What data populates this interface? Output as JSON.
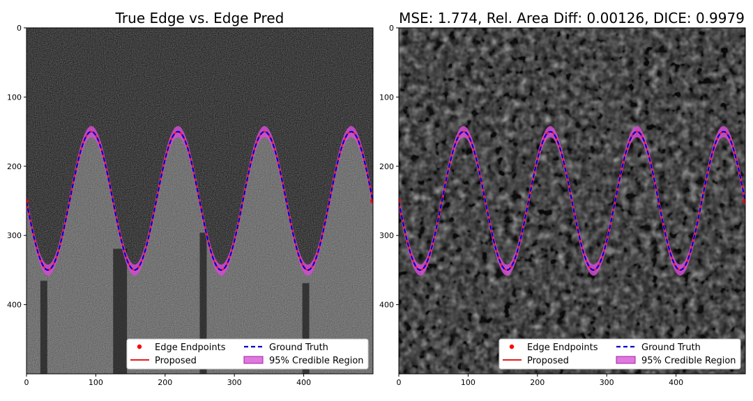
{
  "chart_data": [
    {
      "type": "line",
      "title": "True Edge vs. Edge Pred",
      "background": "noisy grayscale image, brighter region below the edge",
      "xlim": [
        0,
        500
      ],
      "ylim": [
        500,
        0
      ],
      "y_axis_inverted": true,
      "xticks": [
        0,
        100,
        200,
        300,
        400
      ],
      "yticks": [
        0,
        100,
        200,
        300,
        400
      ],
      "grid": false,
      "legend_position": "lower-right",
      "legend": [
        "Edge Endpoints",
        "Ground Truth",
        "Proposed",
        "95% Credible Region"
      ],
      "edge": {
        "form": "sine",
        "center_y": 250,
        "amplitude": 100,
        "period": 125,
        "phase_x_of_minimum": 31
      },
      "edge_endpoints": [
        [
          0,
          250
        ],
        [
          499,
          250
        ]
      ],
      "credible_band_halfwidth": 8
    },
    {
      "type": "line",
      "title": "MSE: 1.774, Rel. Area Diff: 0.00126, DICE: 0.9979",
      "background": "smoothed noisy grayscale image",
      "xlim": [
        0,
        500
      ],
      "ylim": [
        500,
        0
      ],
      "y_axis_inverted": true,
      "xticks": [
        0,
        100,
        200,
        300,
        400
      ],
      "yticks": [
        0,
        100,
        200,
        300,
        400
      ],
      "grid": false,
      "legend_position": "lower-right",
      "legend": [
        "Edge Endpoints",
        "Ground Truth",
        "Proposed",
        "95% Credible Region"
      ],
      "edge": {
        "form": "sine",
        "center_y": 250,
        "amplitude": 100,
        "period": 125,
        "phase_x_of_minimum": 31
      },
      "edge_endpoints": [
        [
          0,
          250
        ],
        [
          499,
          250
        ]
      ],
      "credible_band_halfwidth": 8
    }
  ],
  "colors": {
    "ground_truth": "#0000c8",
    "proposed": "#e41a1c",
    "endpoints": "#ff0000",
    "credible_region": "#d44bd4"
  }
}
